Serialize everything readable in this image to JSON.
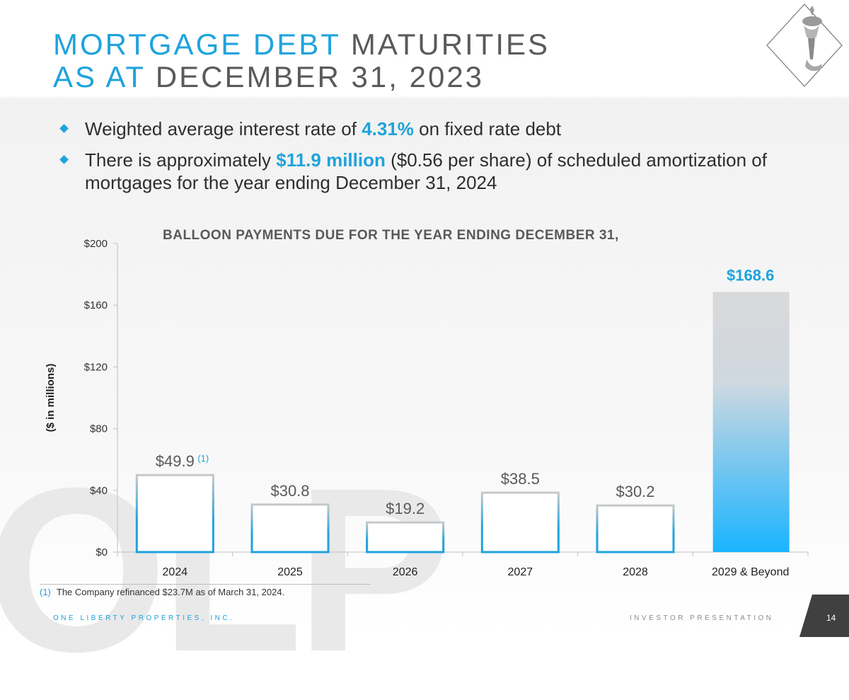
{
  "title": {
    "line1_accent": "MORTGAGE DEBT",
    "line1_rest": " MATURITIES",
    "line2_accent": "AS AT",
    "line2_rest": " DECEMBER 31, 2023"
  },
  "bullets": [
    {
      "before": "Weighted average interest rate of ",
      "highlight": "4.31%",
      "after": " on fixed rate debt"
    },
    {
      "before": "There is approximately ",
      "highlight": "$11.9 million",
      "after": " ($0.56 per share) of scheduled amortization of mortgages for the year ending December 31, 2024"
    }
  ],
  "watermark": "OLP",
  "chart_data": {
    "type": "bar",
    "title": "BALLOON PAYMENTS DUE FOR THE YEAR ENDING DECEMBER 31,",
    "ylabel": "($ in millions)",
    "xlabel": "",
    "categories": [
      "2024",
      "2025",
      "2026",
      "2027",
      "2028",
      "2029 & Beyond"
    ],
    "values": [
      49.9,
      30.8,
      19.2,
      38.5,
      30.2,
      168.6
    ],
    "data_labels": [
      "$49.9",
      "$30.8",
      "$19.2",
      "$38.5",
      "$30.2",
      "$168.6"
    ],
    "footnote_marker": "(1)",
    "yticks": [
      0,
      40,
      80,
      120,
      160,
      200
    ],
    "ytick_labels": [
      "$0",
      "$40",
      "$80",
      "$120",
      "$160",
      "$200"
    ],
    "ylim": [
      0,
      200
    ],
    "colors": {
      "outline": "#1fa3dc",
      "highlight_top": "#d9d9d9",
      "highlight_bottom": "#1ab4ff",
      "label_blue": "#1fa3dc",
      "label_gray": "#595959"
    }
  },
  "footnote": {
    "marker": "(1)",
    "text": "The Company refinanced $23.7M as of March 31, 2024."
  },
  "footer": {
    "company": "ONE LIBERTY PROPERTIES, INC.",
    "presentation": "INVESTOR PRESENTATION",
    "page": "14"
  }
}
